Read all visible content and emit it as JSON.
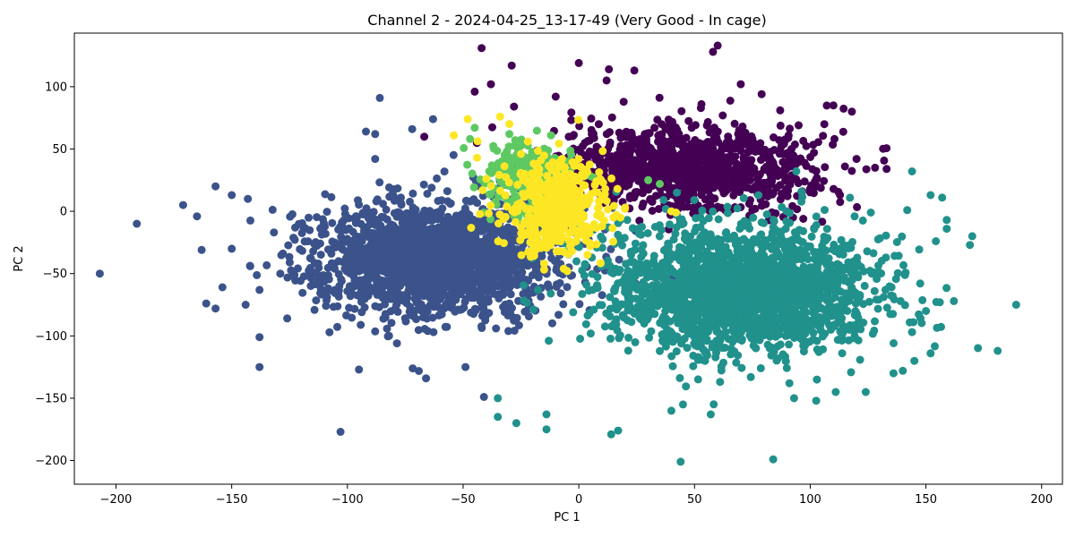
{
  "chart_data": {
    "type": "scatter",
    "title": "Channel 2 - 2024-04-25_13-17-49 (Very Good - In cage)",
    "xlabel": "PC 1",
    "ylabel": "PC 2",
    "xlim": [
      -218,
      209
    ],
    "ylim": [
      -219,
      143
    ],
    "xticks": [
      -200,
      -150,
      -100,
      -50,
      0,
      50,
      100,
      150,
      200
    ],
    "yticks": [
      -200,
      -150,
      -100,
      -50,
      0,
      50,
      100
    ],
    "xtick_labels": [
      "−200",
      "−150",
      "−100",
      "−50",
      "0",
      "50",
      "100",
      "150",
      "200"
    ],
    "ytick_labels": [
      "−200",
      "−150",
      "−100",
      "−50",
      "0",
      "50",
      "100"
    ],
    "grid": false,
    "legend": "none",
    "series": [
      {
        "color": "#440154",
        "cluster": {
          "center": [
            45,
            35
          ],
          "spread": [
            28,
            17
          ],
          "count": 1100
        },
        "points": [
          [
            -42,
            131
          ],
          [
            0,
            119
          ],
          [
            58,
            128
          ],
          [
            60,
            133
          ],
          [
            13,
            114
          ],
          [
            24,
            113
          ],
          [
            70,
            102
          ],
          [
            110,
            85
          ],
          [
            118,
            80
          ],
          [
            95,
            69
          ],
          [
            -45,
            96
          ],
          [
            -38,
            102
          ],
          [
            79,
            94
          ],
          [
            -29,
            117
          ],
          [
            12,
            105
          ],
          [
            53,
            86
          ],
          [
            -28,
            84
          ],
          [
            75,
            58
          ],
          [
            87,
            81
          ],
          [
            120,
            42
          ],
          [
            128,
            35
          ],
          [
            133,
            34
          ],
          [
            115,
            36
          ],
          [
            -10,
            92
          ]
        ]
      },
      {
        "color": "#3b528b",
        "cluster": {
          "center": [
            -62,
            -38
          ],
          "spread": [
            26,
            22
          ],
          "count": 2000
        },
        "points": [
          [
            -207,
            -50
          ],
          [
            -191,
            -10
          ],
          [
            -171,
            5
          ],
          [
            -165,
            -4
          ],
          [
            -157,
            20
          ],
          [
            -163,
            -31
          ],
          [
            -161,
            -74
          ],
          [
            -157,
            -78
          ],
          [
            -154,
            -61
          ],
          [
            -150,
            -30
          ],
          [
            -144,
            -75
          ],
          [
            -142,
            -44
          ],
          [
            -138,
            -101
          ],
          [
            -138,
            -125
          ],
          [
            -103,
            -177
          ],
          [
            -95,
            -127
          ],
          [
            -86,
            91
          ],
          [
            -92,
            64
          ],
          [
            -88,
            62
          ],
          [
            -72,
            66
          ],
          [
            -63,
            74
          ],
          [
            -82,
            -100
          ],
          [
            -66,
            -134
          ],
          [
            -41,
            -149
          ],
          [
            -49,
            -125
          ],
          [
            -88,
            42
          ],
          [
            -150,
            13
          ],
          [
            -143,
            10
          ],
          [
            -129,
            -50
          ],
          [
            -126,
            -86
          ]
        ]
      },
      {
        "color": "#21918c",
        "cluster": {
          "center": [
            70,
            -62
          ],
          "spread": [
            30,
            26
          ],
          "count": 2000
        },
        "points": [
          [
            44,
            -201
          ],
          [
            84,
            -199
          ],
          [
            -35,
            -165
          ],
          [
            -35,
            -150
          ],
          [
            -27,
            -170
          ],
          [
            -14,
            -163
          ],
          [
            -14,
            -175
          ],
          [
            14,
            -179
          ],
          [
            17,
            -176
          ],
          [
            57,
            -163
          ],
          [
            40,
            -160
          ],
          [
            45,
            -155
          ],
          [
            93,
            -150
          ],
          [
            189,
            -75
          ],
          [
            181,
            -112
          ],
          [
            170,
            -20
          ],
          [
            169,
            -27
          ],
          [
            159,
            -7
          ],
          [
            159,
            -14
          ],
          [
            157,
            11
          ],
          [
            152,
            13
          ],
          [
            144,
            32
          ],
          [
            124,
            -145
          ],
          [
            111,
            -145
          ],
          [
            91,
            -138
          ],
          [
            152,
            -114
          ],
          [
            145,
            -120
          ],
          [
            156,
            -73
          ],
          [
            150,
            -80
          ],
          [
            136,
            -130
          ],
          [
            140,
            -128
          ],
          [
            144,
            -97
          ]
        ]
      },
      {
        "color": "#5ec962",
        "cluster": {
          "center": [
            -20,
            28
          ],
          "spread": [
            11,
            16
          ],
          "count": 240
        },
        "points": [
          [
            -45,
            67
          ],
          [
            -47,
            58
          ],
          [
            -30,
            62
          ],
          [
            -12,
            61
          ],
          [
            -5,
            40
          ],
          [
            30,
            25
          ],
          [
            35,
            22
          ],
          [
            -36,
            8
          ],
          [
            -10,
            14
          ]
        ]
      },
      {
        "color": "#fde725",
        "cluster": {
          "center": [
            -10,
            5
          ],
          "spread": [
            11,
            19
          ],
          "count": 420
        },
        "points": [
          [
            -48,
            74
          ],
          [
            -54,
            61
          ],
          [
            -34,
            76
          ],
          [
            -30,
            70
          ],
          [
            -44,
            43
          ],
          [
            -40,
            26
          ],
          [
            -18,
            38
          ],
          [
            -22,
            56
          ],
          [
            -25,
            46
          ],
          [
            -21,
            -25
          ],
          [
            -15,
            -42
          ],
          [
            -5,
            -48
          ],
          [
            -3,
            -32
          ],
          [
            5,
            -28
          ],
          [
            10,
            -12
          ],
          [
            15,
            -5
          ],
          [
            18,
            -5
          ],
          [
            8,
            15
          ],
          [
            20,
            3
          ],
          [
            40,
            0
          ],
          [
            42,
            -1
          ]
        ]
      }
    ]
  }
}
